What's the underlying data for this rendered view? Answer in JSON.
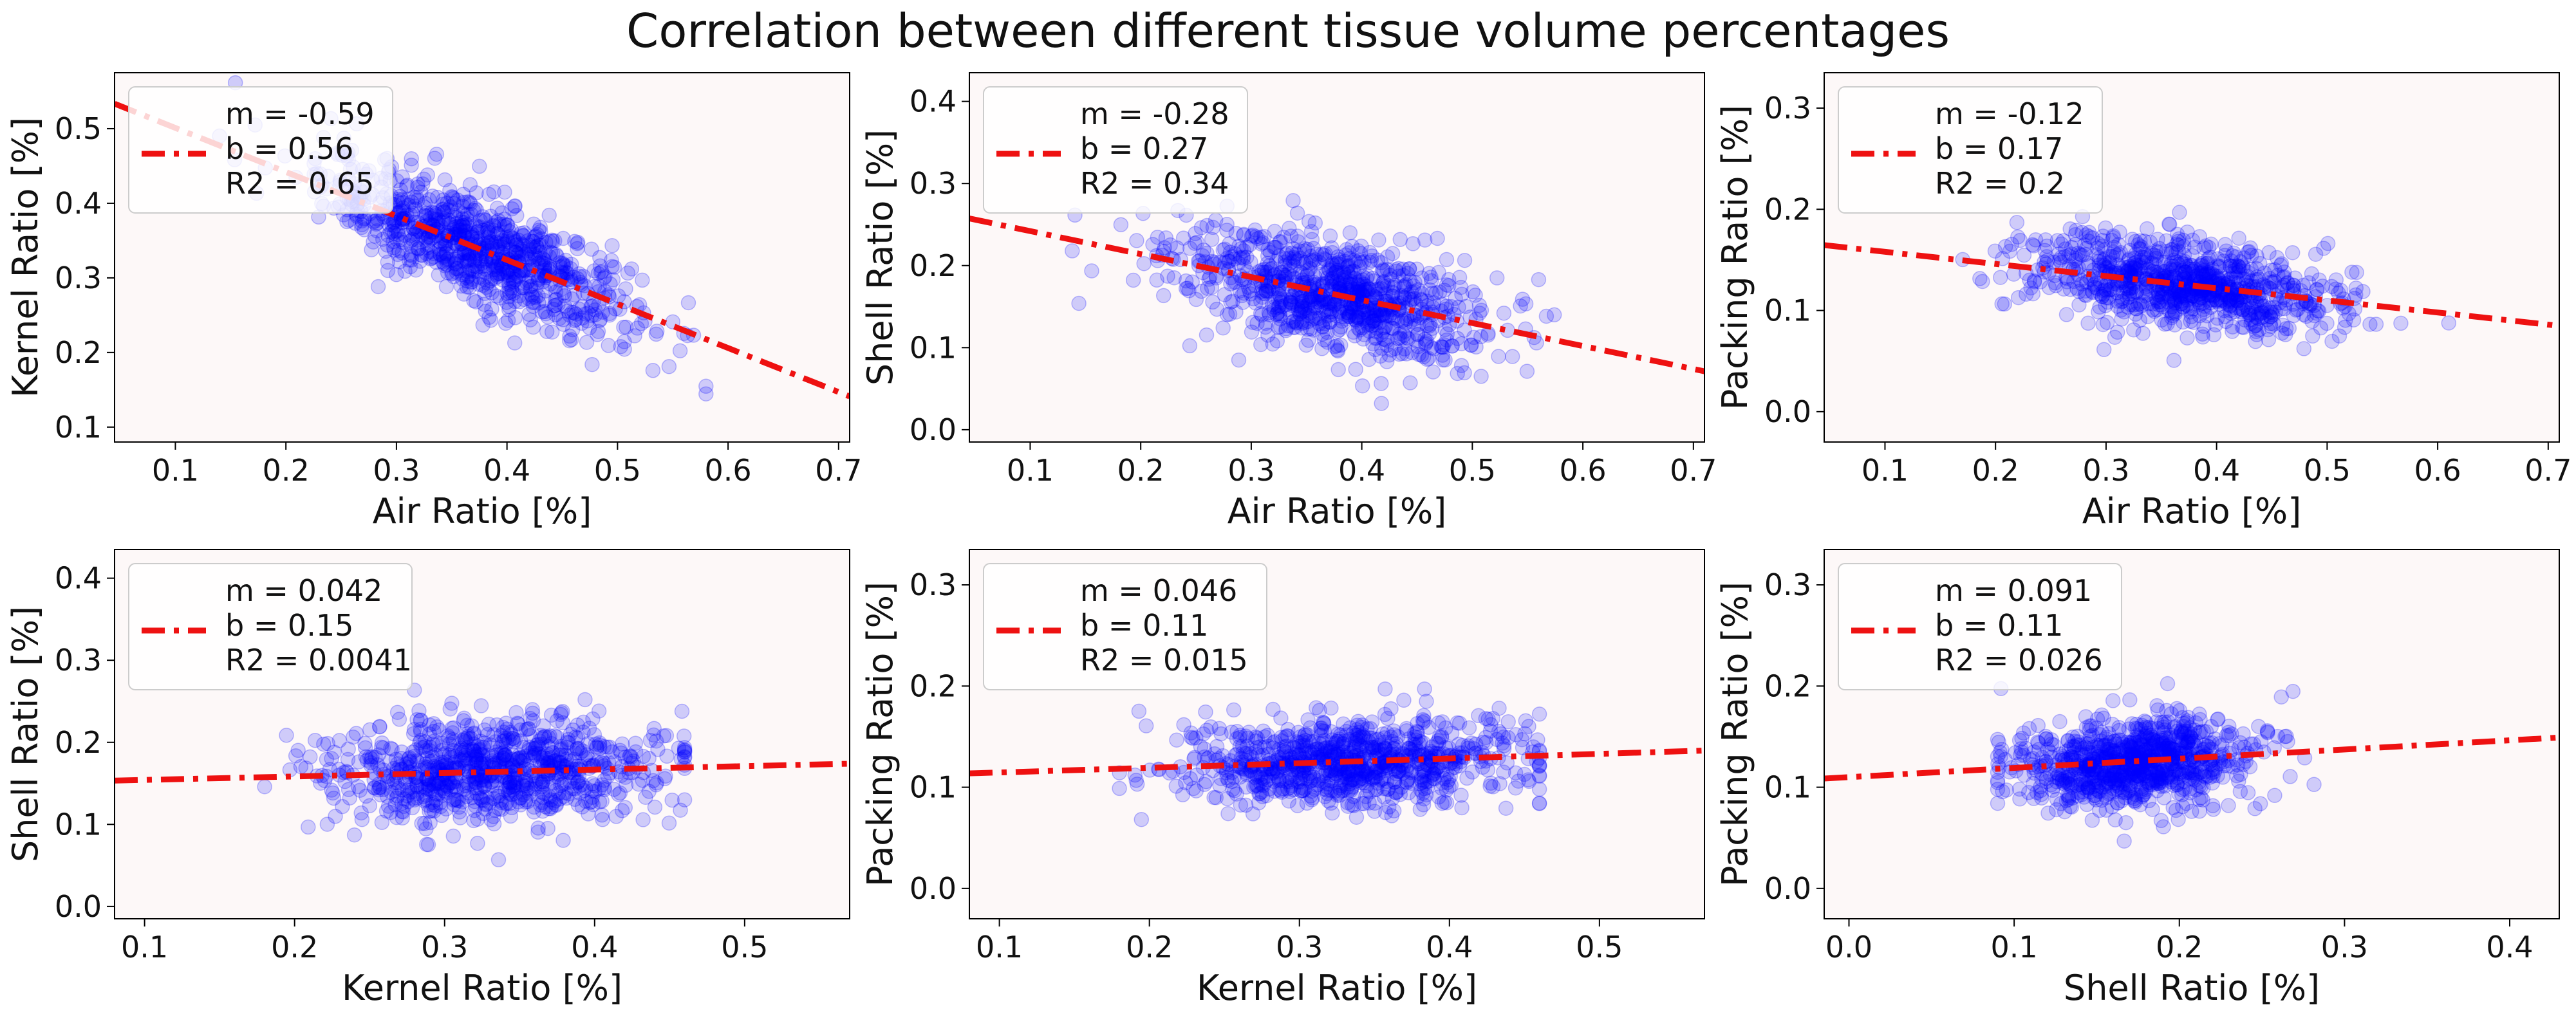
{
  "figure": {
    "title": "Correlation between different tissue volume percentages"
  },
  "colors": {
    "points": "#0000ff",
    "fit": "#ee1111",
    "axes_bg": "#fdf8f8",
    "legend_edge": "#cccccc"
  },
  "chart_data": [
    {
      "type": "scatter",
      "xlabel": "Air Ratio [%]",
      "ylabel": "Kernel Ratio [%]",
      "xlim": [
        0.045,
        0.71
      ],
      "ylim": [
        0.08,
        0.575
      ],
      "xticks": [
        "0.1",
        "0.2",
        "0.3",
        "0.4",
        "0.5",
        "0.6",
        "0.7"
      ],
      "yticks": [
        "0.1",
        "0.2",
        "0.3",
        "0.4",
        "0.5"
      ],
      "cloud": {
        "cx": 0.375,
        "sx": 0.07,
        "x_range": [
          0.14,
          0.58
        ],
        "noise": 0.035,
        "n": 900
      },
      "fit": {
        "m": -0.59,
        "b": 0.56,
        "r2": 0.65
      },
      "legend": [
        "m = -0.59",
        "b = 0.56",
        "R2 = 0.65"
      ]
    },
    {
      "type": "scatter",
      "xlabel": "Air Ratio [%]",
      "ylabel": "Shell Ratio [%]",
      "xlim": [
        0.045,
        0.71
      ],
      "ylim": [
        -0.015,
        0.435
      ],
      "xticks": [
        "0.1",
        "0.2",
        "0.3",
        "0.4",
        "0.5",
        "0.6",
        "0.7"
      ],
      "yticks": [
        "0.0",
        "0.1",
        "0.2",
        "0.3",
        "0.4"
      ],
      "cloud": {
        "cx": 0.37,
        "sx": 0.07,
        "x_range": [
          0.13,
          0.6
        ],
        "noise": 0.033,
        "n": 900
      },
      "fit": {
        "m": -0.28,
        "b": 0.27,
        "r2": 0.34
      },
      "legend": [
        "m = -0.28",
        "b = 0.27",
        "R2 = 0.34"
      ]
    },
    {
      "type": "scatter",
      "xlabel": "Air Ratio [%]",
      "ylabel": "Packing Ratio [%]",
      "xlim": [
        0.045,
        0.71
      ],
      "ylim": [
        -0.03,
        0.335
      ],
      "xticks": [
        "0.1",
        "0.2",
        "0.3",
        "0.4",
        "0.5",
        "0.6",
        "0.7"
      ],
      "yticks": [
        "0.0",
        "0.1",
        "0.2",
        "0.3"
      ],
      "cloud": {
        "cx": 0.37,
        "sx": 0.07,
        "x_range": [
          0.17,
          0.61
        ],
        "noise": 0.022,
        "n": 900
      },
      "fit": {
        "m": -0.12,
        "b": 0.17,
        "r2": 0.2
      },
      "legend": [
        "m = -0.12",
        "b = 0.17",
        "R2 = 0.2"
      ]
    },
    {
      "type": "scatter",
      "xlabel": "Kernel Ratio [%]",
      "ylabel": "Shell Ratio [%]",
      "xlim": [
        0.08,
        0.57
      ],
      "ylim": [
        -0.015,
        0.435
      ],
      "xticks": [
        "0.1",
        "0.2",
        "0.3",
        "0.4",
        "0.5"
      ],
      "yticks": [
        "0.0",
        "0.1",
        "0.2",
        "0.3",
        "0.4"
      ],
      "cloud": {
        "cx": 0.33,
        "sx": 0.055,
        "x_range": [
          0.18,
          0.46
        ],
        "noise": 0.032,
        "n": 900
      },
      "fit": {
        "m": 0.042,
        "b": 0.15,
        "r2": 0.0041
      },
      "legend": [
        "m = 0.042",
        "b = 0.15",
        "R2 = 0.0041"
      ]
    },
    {
      "type": "scatter",
      "xlabel": "Kernel Ratio [%]",
      "ylabel": "Packing Ratio [%]",
      "xlim": [
        0.08,
        0.57
      ],
      "ylim": [
        -0.03,
        0.335
      ],
      "xticks": [
        "0.1",
        "0.2",
        "0.3",
        "0.4",
        "0.5"
      ],
      "yticks": [
        "0.0",
        "0.1",
        "0.2",
        "0.3"
      ],
      "cloud": {
        "cx": 0.33,
        "sx": 0.055,
        "x_range": [
          0.18,
          0.46
        ],
        "noise": 0.022,
        "n": 900
      },
      "fit": {
        "m": 0.046,
        "b": 0.11,
        "r2": 0.015
      },
      "legend": [
        "m = 0.046",
        "b = 0.11",
        "R2 = 0.015"
      ]
    },
    {
      "type": "scatter",
      "xlabel": "Shell Ratio [%]",
      "ylabel": "Packing Ratio [%]",
      "xlim": [
        -0.015,
        0.43
      ],
      "ylim": [
        -0.03,
        0.335
      ],
      "xticks": [
        "0.0",
        "0.1",
        "0.2",
        "0.3",
        "0.4"
      ],
      "yticks": [
        "0.0",
        "0.1",
        "0.2",
        "0.3"
      ],
      "cloud": {
        "cx": 0.17,
        "sx": 0.035,
        "x_range": [
          0.09,
          0.33
        ],
        "noise": 0.022,
        "n": 900
      },
      "fit": {
        "m": 0.091,
        "b": 0.11,
        "r2": 0.026
      },
      "legend": [
        "m = 0.091",
        "b = 0.11",
        "R2 = 0.026"
      ]
    }
  ]
}
